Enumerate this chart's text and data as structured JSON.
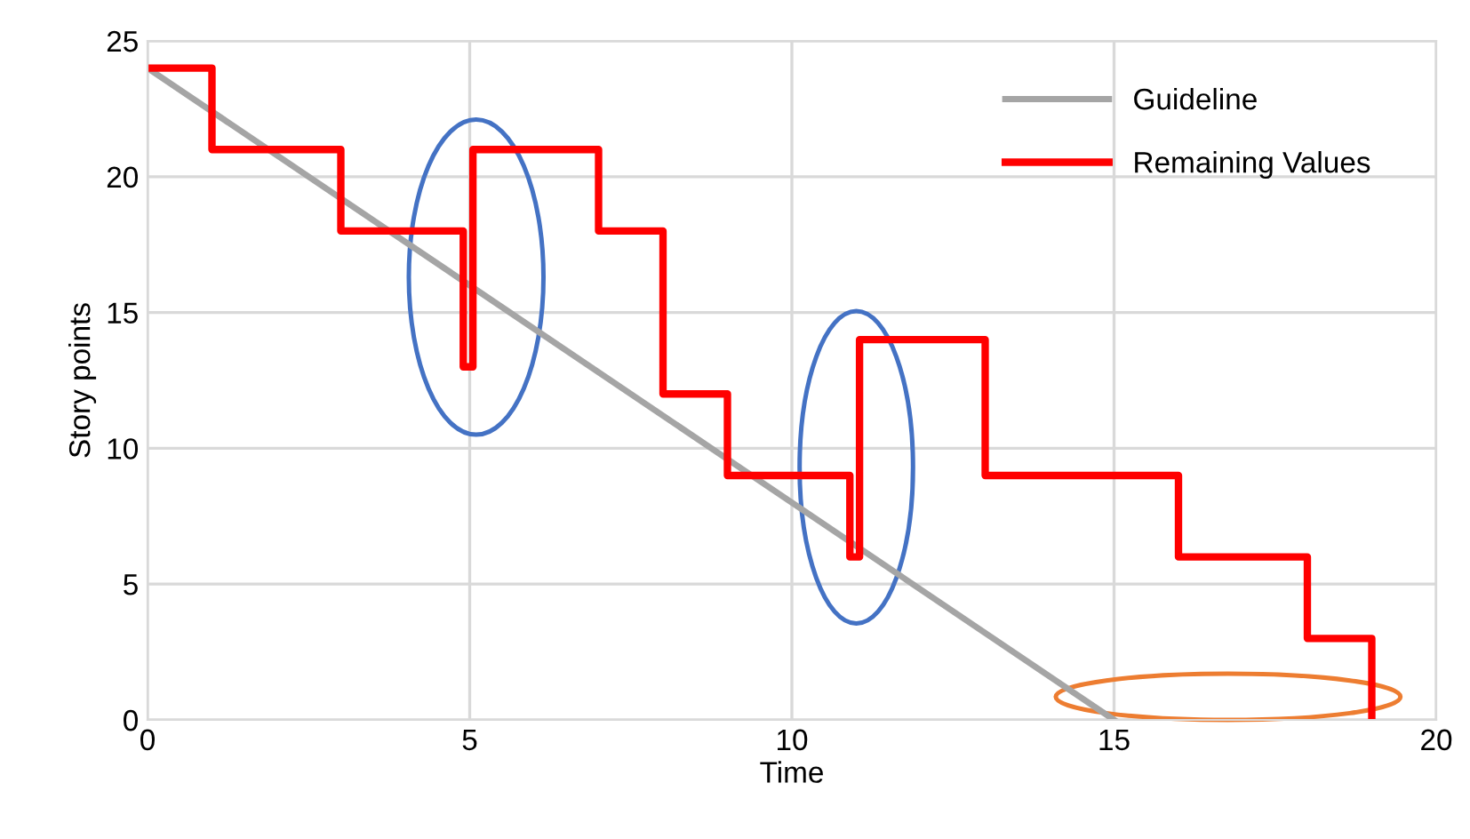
{
  "chart_data": {
    "type": "line",
    "xlabel": "Time",
    "ylabel": "Story points",
    "xlim": [
      0,
      20
    ],
    "xticks": [
      0,
      5,
      10,
      15,
      20
    ],
    "ylim": [
      0,
      25
    ],
    "yticks": [
      0,
      5,
      10,
      15,
      20,
      25
    ],
    "grid": true,
    "legend": "top right",
    "marker": "none",
    "line_style": "solid",
    "series": [
      {
        "name": "Guideline",
        "color": "#a5a5a5",
        "x": [
          0,
          15
        ],
        "values": [
          24,
          0
        ]
      },
      {
        "name": "Remaining Values",
        "type": "step",
        "color": "#ff0000",
        "x": [
          0,
          1,
          3,
          4.9,
          5.05,
          7,
          8,
          9,
          10.9,
          11.05,
          13,
          16,
          18,
          19
        ],
        "values": [
          24,
          21,
          18,
          13,
          21,
          18,
          12,
          9,
          6,
          14,
          9,
          6,
          3,
          0
        ]
      }
    ]
  }
}
